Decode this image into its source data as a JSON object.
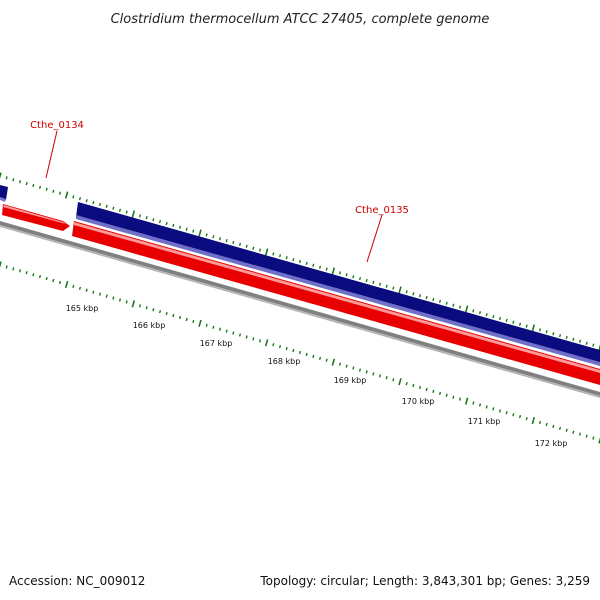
{
  "title": "Clostridium thermocellum ATCC 27405, complete genome",
  "genes": [
    {
      "label": "Cthe_0134"
    },
    {
      "label": "Cthe_0135"
    }
  ],
  "ruler": [
    "165 kbp",
    "166 kbp",
    "167 kbp",
    "168 kbp",
    "169 kbp",
    "170 kbp",
    "171 kbp",
    "172 kbp"
  ],
  "footer": {
    "accession": "Accession: NC_009012",
    "stats": "Topology: circular; Length: 3,843,301 bp; Genes: 3,259"
  },
  "colors": {
    "forward_strand": "#0b0b80",
    "reverse_strand": "#e80000",
    "backbone": "#808080",
    "tick": "#1a7a1a",
    "label": "#cc0000"
  }
}
